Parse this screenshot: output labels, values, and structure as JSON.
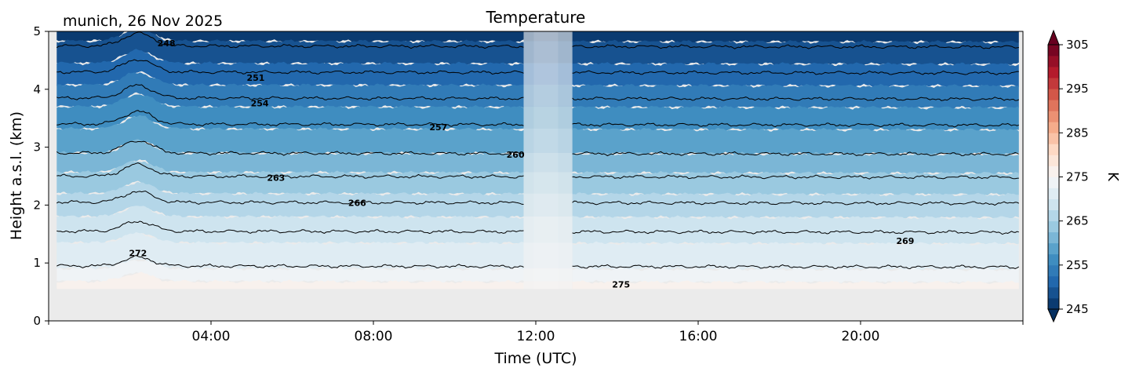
{
  "chart_data": {
    "type": "heatmap",
    "subtype": "filled-contour time-height cross section",
    "title": "Temperature",
    "site_date": "munich, 26 Nov 2025",
    "xlabel": "Time (UTC)",
    "ylabel": "Height a.s.l. (km)",
    "xlim_hours": [
      0,
      24
    ],
    "ylim_km": [
      0,
      5
    ],
    "x_ticks": [
      {
        "hour": 4,
        "label": "04:00"
      },
      {
        "hour": 8,
        "label": "08:00"
      },
      {
        "hour": 12,
        "label": "12:00"
      },
      {
        "hour": 16,
        "label": "16:00"
      },
      {
        "hour": 20,
        "label": "20:00"
      }
    ],
    "x_minor_ticks_hours": [
      0,
      24
    ],
    "y_ticks": [
      {
        "value": 0,
        "label": "0"
      },
      {
        "value": 1,
        "label": "1"
      },
      {
        "value": 2,
        "label": "2"
      },
      {
        "value": 3,
        "label": "3"
      },
      {
        "value": 4,
        "label": "4"
      },
      {
        "value": 5,
        "label": "5"
      }
    ],
    "data_time_range_hours": [
      0.2,
      23.9
    ],
    "data_min_height_km": 0.55,
    "data_gap_hours": [
      11.7,
      12.9
    ],
    "gap_fill_time_range_hours": [
      11.95,
      12.55
    ],
    "colorbar": {
      "label": "K",
      "cmap": "RdBu_r",
      "vmin": 245,
      "vmax": 305,
      "step": 2.5,
      "extend": "both",
      "ticks": [
        {
          "value": 245,
          "label": "245"
        },
        {
          "value": 255,
          "label": "255"
        },
        {
          "value": 265,
          "label": "265"
        },
        {
          "value": 275,
          "label": "275"
        },
        {
          "value": 285,
          "label": "285"
        },
        {
          "value": 295,
          "label": "295"
        },
        {
          "value": 305,
          "label": "305"
        }
      ]
    },
    "temperature_profile": {
      "description": "Approximate temperature (K) vs height (km); roughly uniform in time",
      "heights_km": [
        0.55,
        0.95,
        1.55,
        2.05,
        2.5,
        2.9,
        3.4,
        3.85,
        4.3,
        4.75,
        5.0
      ],
      "temperature_K": [
        276.5,
        272,
        269,
        266,
        263,
        260,
        257,
        254,
        251,
        248,
        246.5
      ]
    },
    "contour_lines": [
      {
        "level": 272,
        "height_km": 0.95,
        "labels": [
          {
            "label": "272",
            "hour": 2.2,
            "height_km": 1.17
          }
        ]
      },
      {
        "level": 269,
        "height_km": 1.55,
        "labels": [
          {
            "label": "269",
            "hour": 21.1,
            "height_km": 1.38
          }
        ]
      },
      {
        "level": 266,
        "height_km": 2.05,
        "labels": [
          {
            "label": "266",
            "hour": 7.6,
            "height_km": 2.04
          }
        ]
      },
      {
        "level": 263,
        "height_km": 2.5,
        "labels": [
          {
            "label": "263",
            "hour": 5.6,
            "height_km": 2.47
          }
        ]
      },
      {
        "level": 260,
        "height_km": 2.9,
        "labels": [
          {
            "label": "260",
            "hour": 11.5,
            "height_km": 2.87
          }
        ]
      },
      {
        "level": 257,
        "height_km": 3.4,
        "labels": [
          {
            "label": "257",
            "hour": 9.6,
            "height_km": 3.35
          }
        ]
      },
      {
        "level": 254,
        "height_km": 3.85,
        "labels": [
          {
            "label": "254",
            "hour": 5.2,
            "height_km": 3.76
          }
        ]
      },
      {
        "level": 251,
        "height_km": 4.3,
        "labels": [
          {
            "label": "251",
            "hour": 5.1,
            "height_km": 4.2
          }
        ]
      },
      {
        "level": 248,
        "height_km": 4.75,
        "labels": [
          {
            "label": "248",
            "hour": 2.9,
            "height_km": 4.8
          }
        ]
      }
    ],
    "isolated_labels": [
      {
        "label": "275",
        "hour": 14.1,
        "height_km": 0.63
      }
    ],
    "wave_feature": {
      "center_hour": 2.2,
      "width_hours": 0.5,
      "amplitude_km": 0.22
    },
    "grid": false
  }
}
